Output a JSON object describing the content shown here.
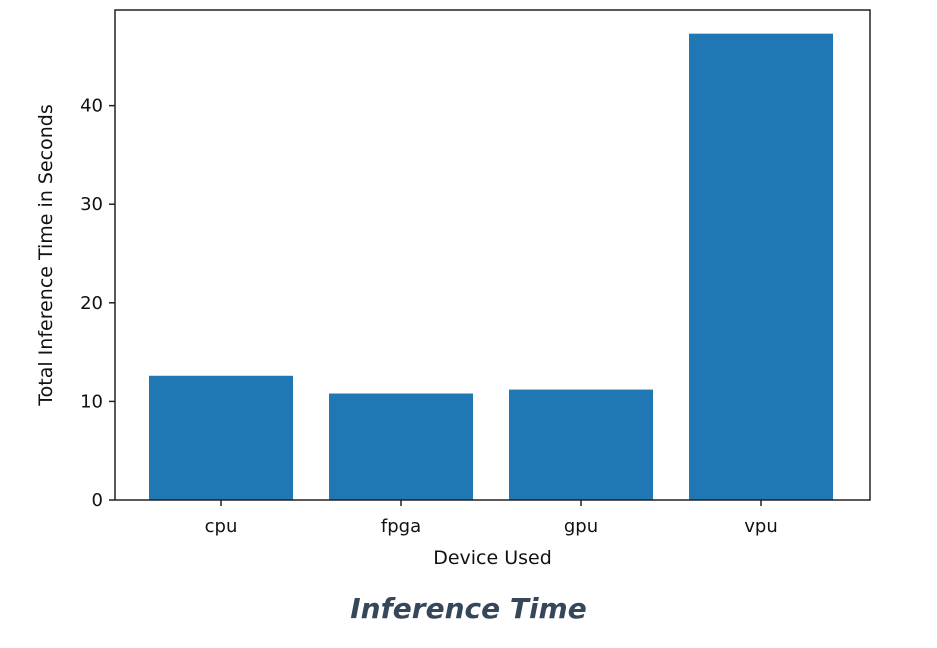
{
  "caption": "Inference Time",
  "colors": {
    "bar": "#1f77b4",
    "axis": "#222222",
    "caption": "#36475a"
  },
  "chart_data": {
    "type": "bar",
    "categories": [
      "cpu",
      "fpga",
      "gpu",
      "vpu"
    ],
    "values": [
      12.6,
      10.8,
      11.2,
      47.3
    ],
    "title": "",
    "xlabel": "Device Used",
    "ylabel": "Total Inference Time in Seconds",
    "ylim": [
      0,
      49.7
    ],
    "yticks": [
      0,
      10,
      20,
      30,
      40
    ],
    "grid": false,
    "legend": "none"
  }
}
